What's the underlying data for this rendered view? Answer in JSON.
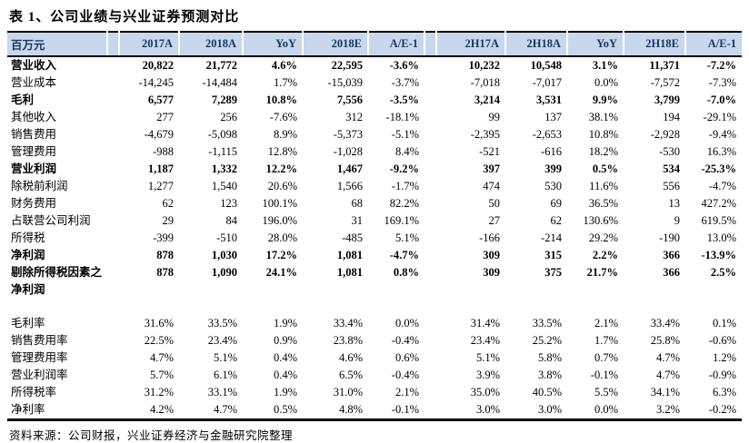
{
  "title": "表 1、公司业绩与兴业证券预测对比",
  "source_note": "资料来源：公司财报，兴业证券经济与金融研究院整理",
  "colors": {
    "header_bg": "#c9d7ec",
    "header_text": "#17365d",
    "rule": "#000000"
  },
  "table": {
    "unit_header": "百万元",
    "headers": [
      "百万元",
      "2017A",
      "2018A",
      "YoY",
      "2018E",
      "A/E-1",
      "2H17A",
      "2H18A",
      "YoY",
      "2H18E",
      "A/E-1"
    ],
    "rows": [
      {
        "label": "营业收入",
        "bold": true,
        "spacer": false,
        "values": [
          "20,822",
          "21,772",
          "4.6%",
          "22,595",
          "-3.6%",
          "10,232",
          "10,548",
          "3.1%",
          "11,371",
          "-7.2%"
        ]
      },
      {
        "label": "营业成本",
        "bold": false,
        "spacer": false,
        "values": [
          "-14,245",
          "-14,484",
          "1.7%",
          "-15,039",
          "-3.7%",
          "-7,018",
          "-7,017",
          "0.0%",
          "-7,572",
          "-7.3%"
        ]
      },
      {
        "label": "毛利",
        "bold": true,
        "spacer": false,
        "values": [
          "6,577",
          "7,289",
          "10.8%",
          "7,556",
          "-3.5%",
          "3,214",
          "3,531",
          "9.9%",
          "3,799",
          "-7.0%"
        ]
      },
      {
        "label": "其他收入",
        "bold": false,
        "spacer": false,
        "values": [
          "277",
          "256",
          "-7.6%",
          "312",
          "-18.1%",
          "99",
          "137",
          "38.1%",
          "194",
          "-29.1%"
        ]
      },
      {
        "label": "销售费用",
        "bold": false,
        "spacer": false,
        "values": [
          "-4,679",
          "-5,098",
          "8.9%",
          "-5,373",
          "-5.1%",
          "-2,395",
          "-2,653",
          "10.8%",
          "-2,928",
          "-9.4%"
        ]
      },
      {
        "label": "管理费用",
        "bold": false,
        "spacer": false,
        "values": [
          "-988",
          "-1,115",
          "12.8%",
          "-1,028",
          "8.4%",
          "-521",
          "-616",
          "18.2%",
          "-530",
          "16.3%"
        ]
      },
      {
        "label": "营业利润",
        "bold": true,
        "spacer": false,
        "values": [
          "1,187",
          "1,332",
          "12.2%",
          "1,467",
          "-9.2%",
          "397",
          "399",
          "0.5%",
          "534",
          "-25.3%"
        ]
      },
      {
        "label": "除税前利润",
        "bold": false,
        "spacer": false,
        "values": [
          "1,277",
          "1,540",
          "20.6%",
          "1,566",
          "-1.7%",
          "474",
          "530",
          "11.6%",
          "556",
          "-4.7%"
        ]
      },
      {
        "label": "财务费用",
        "bold": false,
        "spacer": false,
        "values": [
          "62",
          "123",
          "100.1%",
          "68",
          "82.2%",
          "50",
          "69",
          "36.5%",
          "13",
          "427.2%"
        ]
      },
      {
        "label": "占联营公司利润",
        "bold": false,
        "spacer": false,
        "values": [
          "29",
          "84",
          "196.0%",
          "31",
          "169.1%",
          "27",
          "62",
          "130.6%",
          "9",
          "619.5%"
        ]
      },
      {
        "label": "所得税",
        "bold": false,
        "spacer": false,
        "values": [
          "-399",
          "-510",
          "28.0%",
          "-485",
          "5.1%",
          "-166",
          "-214",
          "29.2%",
          "-190",
          "13.0%"
        ]
      },
      {
        "label": "净利润",
        "bold": true,
        "spacer": false,
        "values": [
          "878",
          "1,030",
          "17.2%",
          "1,081",
          "-4.7%",
          "309",
          "315",
          "2.2%",
          "366",
          "-13.9%"
        ]
      },
      {
        "label": "剔除所得税因素之净利润",
        "bold": true,
        "spacer": false,
        "values": [
          "878",
          "1,090",
          "24.1%",
          "1,081",
          "0.8%",
          "309",
          "375",
          "21.7%",
          "366",
          "2.5%"
        ]
      },
      {
        "label": "",
        "bold": false,
        "spacer": true,
        "values": [
          "",
          "",
          "",
          "",
          "",
          "",
          "",
          "",
          "",
          ""
        ]
      },
      {
        "label": "毛利率",
        "bold": false,
        "spacer": false,
        "values": [
          "31.6%",
          "33.5%",
          "1.9%",
          "33.4%",
          "0.0%",
          "31.4%",
          "33.5%",
          "2.1%",
          "33.4%",
          "0.1%"
        ]
      },
      {
        "label": "销售费用率",
        "bold": false,
        "spacer": false,
        "values": [
          "22.5%",
          "23.4%",
          "0.9%",
          "23.8%",
          "-0.4%",
          "23.4%",
          "25.2%",
          "1.7%",
          "25.8%",
          "-0.6%"
        ]
      },
      {
        "label": "管理费用率",
        "bold": false,
        "spacer": false,
        "values": [
          "4.7%",
          "5.1%",
          "0.4%",
          "4.6%",
          "0.6%",
          "5.1%",
          "5.8%",
          "0.7%",
          "4.7%",
          "1.2%"
        ]
      },
      {
        "label": "营业利润率",
        "bold": false,
        "spacer": false,
        "values": [
          "5.7%",
          "6.1%",
          "0.4%",
          "6.5%",
          "-0.4%",
          "3.9%",
          "3.8%",
          "-0.1%",
          "4.7%",
          "-0.9%"
        ]
      },
      {
        "label": "所得税率",
        "bold": false,
        "spacer": false,
        "values": [
          "31.2%",
          "33.1%",
          "1.9%",
          "31.0%",
          "2.1%",
          "35.0%",
          "40.5%",
          "5.5%",
          "34.1%",
          "6.3%"
        ]
      },
      {
        "label": "净利率",
        "bold": false,
        "spacer": false,
        "values": [
          "4.2%",
          "4.7%",
          "0.5%",
          "4.8%",
          "-0.1%",
          "3.0%",
          "3.0%",
          "0.0%",
          "3.2%",
          "-0.2%"
        ]
      }
    ]
  }
}
